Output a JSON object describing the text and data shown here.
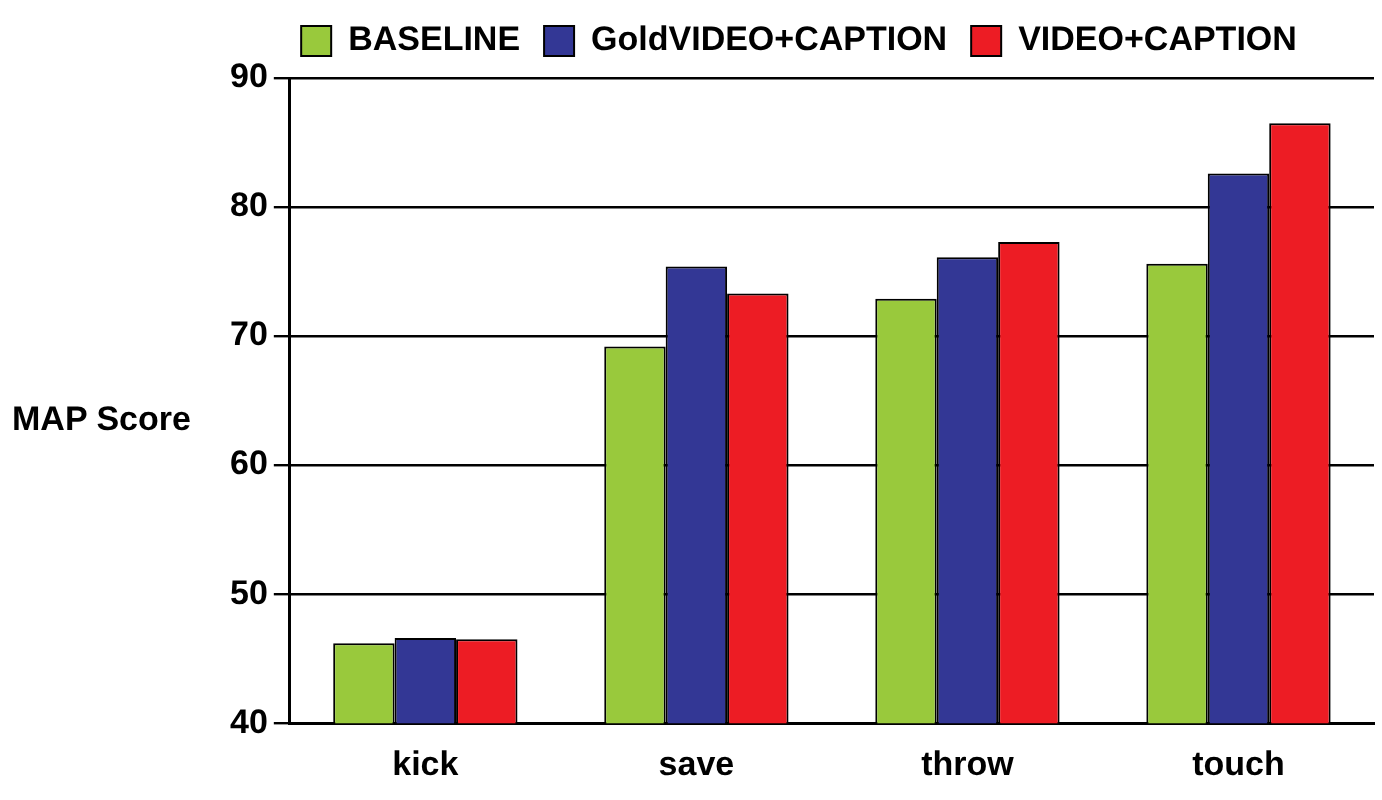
{
  "chart_data": {
    "type": "bar",
    "ylabel": "MAP Score",
    "categories": [
      "kick",
      "save",
      "throw",
      "touch"
    ],
    "series": [
      {
        "name": "BASELINE",
        "color": "#99c93c",
        "values": [
          46.2,
          69.2,
          72.9,
          75.6
        ]
      },
      {
        "name": "GoldVIDEO+CAPTION",
        "color": "#333795",
        "values": [
          46.6,
          75.4,
          76.1,
          82.6
        ]
      },
      {
        "name": "VIDEO+CAPTION",
        "color": "#ed1c24",
        "values": [
          46.5,
          73.3,
          77.3,
          86.5
        ]
      }
    ],
    "ylim": [
      40,
      90
    ],
    "yticks": [
      40,
      50,
      60,
      70,
      80,
      90
    ],
    "grid": "y",
    "legend": "top"
  }
}
